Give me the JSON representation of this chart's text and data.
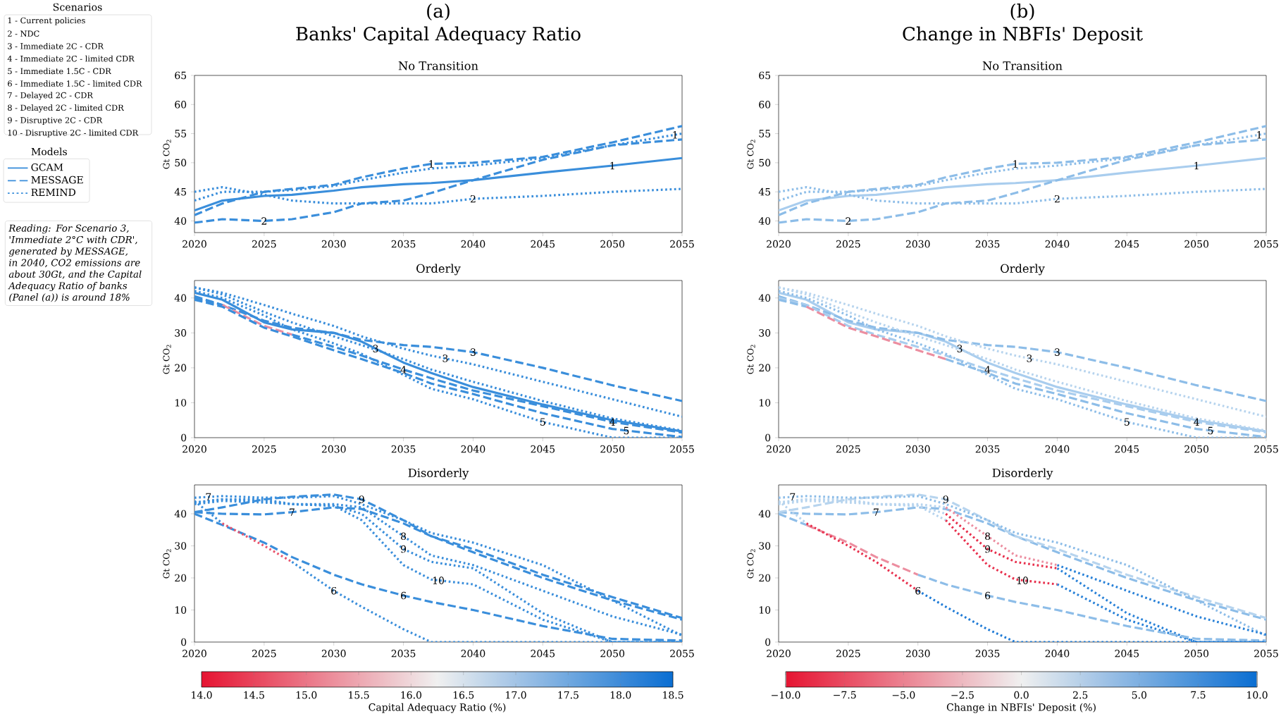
{
  "chart_data": [
    {
      "type": "other",
      "title": "Scenarios",
      "annotations": [
        "1 - Current policies",
        "2 - NDC",
        "3 - Immediate 2C - CDR",
        "4 - Immediate 2C - limited CDR",
        "5 - Immediate 1.5C - CDR",
        "6 - Immediate 1.5C - limited CDR",
        "7 - Delayed 2C - CDR",
        "8 - Delayed 2C - limited CDR",
        "9 - Disruptive 2C - CDR",
        "10 - Disruptive 2C - limited CDR",
        "*Reading: For Scenario 3, 'Immediate 2°C with CDR', generated by MESSAGE, in 2040, CO2 emissions are about 30Gt, and the Capital Adequacy Ratio of banks (Panel (a)) is around 18%*"
      ]
    },
    {
      "type": "line",
      "title": "Banks' Capital Adequacy Ratio",
      "subtitle": "No Transition",
      "ylabel": "Gt CO$_{2}$",
      "legend": "left",
      "legend_title": "Models",
      "x": [
        2020,
        2022,
        2025,
        2027,
        2030,
        2032,
        2035,
        2037,
        2040,
        2045,
        2050,
        2055
      ],
      "xlim": [
        2020,
        2055
      ],
      "xticks": [
        2020,
        2025,
        2030,
        2035,
        2040,
        2045,
        2050,
        2055
      ],
      "ylim": [
        38,
        65
      ],
      "yticks": [
        40,
        45,
        50,
        55,
        60,
        65
      ],
      "annotations": [
        "(a)",
        {
          "text": "1",
          "x": 2037,
          "y": 49.8
        },
        {
          "text": "1",
          "x": 2050,
          "y": 49.5
        },
        {
          "text": "1",
          "x": 2054.5,
          "y": 54.8
        },
        {
          "text": "2",
          "x": 2025,
          "y": 40
        },
        {
          "text": "2",
          "x": 2040,
          "y": 43.8
        }
      ],
      "series": [
        {
          "name": "GCAM",
          "line_style": "solid",
          "color": "#3a8edb",
          "values": [
            41.8,
            43.5,
            44.3,
            44.5,
            45.2,
            45.8,
            46.3,
            46.5,
            47,
            48.3,
            49.5,
            50.8
          ]
        },
        {
          "name": "MESSAGE",
          "line_style": "dashed",
          "color": "#3a8edb",
          "values": [
            41,
            43,
            45,
            45.5,
            46.2,
            47.5,
            49,
            49.8,
            50,
            51,
            53.5,
            56.3
          ]
        },
        {
          "name": "REMIND",
          "line_style": "dotted",
          "color": "#3a8edb",
          "values": [
            43.5,
            45,
            45,
            45.3,
            46,
            47,
            48.3,
            49,
            49.5,
            50.8,
            53,
            55
          ]
        },
        {
          "line_style": "dashed",
          "color": "#3a8edb",
          "values": [
            39.7,
            40.3,
            40,
            40.3,
            41.5,
            43,
            43.5,
            44.8,
            47,
            50.5,
            53,
            54
          ]
        },
        {
          "line_style": "dotted",
          "color": "#3a8edb",
          "values": [
            45,
            45.8,
            44.5,
            43.5,
            43,
            43,
            43,
            43,
            43.8,
            44.3,
            45,
            45.5
          ]
        }
      ]
    },
    {
      "type": "line",
      "title": "Change in NBFIs' Deposit",
      "subtitle": "No Transition",
      "ylabel": "Gt CO$_{2}$",
      "x": [
        2020,
        2022,
        2025,
        2027,
        2030,
        2032,
        2035,
        2037,
        2040,
        2045,
        2050,
        2055
      ],
      "xlim": [
        2020,
        2055
      ],
      "xticks": [
        2020,
        2025,
        2030,
        2035,
        2040,
        2045,
        2050,
        2055
      ],
      "ylim": [
        38,
        65
      ],
      "yticks": [
        40,
        45,
        50,
        55,
        60,
        65
      ],
      "annotations": [
        "(b)",
        {
          "text": "1",
          "x": 2037,
          "y": 49.8
        },
        {
          "text": "1",
          "x": 2050,
          "y": 49.5
        },
        {
          "text": "1",
          "x": 2054.5,
          "y": 54.8
        },
        {
          "text": "2",
          "x": 2025,
          "y": 40
        },
        {
          "text": "2",
          "x": 2040,
          "y": 43.8
        }
      ],
      "series": [
        {
          "line_style": "solid",
          "color": "#a9cdee",
          "values": [
            41.8,
            43.5,
            44.3,
            44.5,
            45.2,
            45.8,
            46.3,
            46.5,
            47,
            48.3,
            49.5,
            50.8
          ]
        },
        {
          "line_style": "dashed",
          "color": "#8dbde8",
          "values": [
            41,
            43,
            45,
            45.5,
            46.2,
            47.5,
            49,
            49.8,
            50,
            51,
            53.5,
            56.3
          ]
        },
        {
          "line_style": "dotted",
          "color": "#8dbde8",
          "values": [
            43.5,
            45,
            45,
            45.3,
            46,
            47,
            48.3,
            49,
            49.5,
            50.8,
            53,
            55
          ]
        },
        {
          "line_style": "dashed",
          "color": "#8dbde8",
          "values": [
            39.7,
            40.3,
            40,
            40.3,
            41.5,
            43,
            43.5,
            44.8,
            47,
            50.5,
            53,
            54
          ]
        },
        {
          "line_style": "dotted",
          "color": "#8dbde8",
          "values": [
            45,
            45.8,
            44.5,
            43.5,
            43,
            43,
            43,
            43,
            43.8,
            44.3,
            45,
            45.5
          ]
        }
      ]
    },
    {
      "type": "line",
      "title": "Orderly",
      "ylabel": "Gt CO$_{2}$",
      "x": [
        2020,
        2022,
        2025,
        2027,
        2030,
        2032,
        2035,
        2037,
        2040,
        2045,
        2050,
        2055
      ],
      "xlim": [
        2020,
        2055
      ],
      "xticks": [
        2020,
        2025,
        2030,
        2035,
        2040,
        2045,
        2050,
        2055
      ],
      "ylim": [
        0,
        45
      ],
      "yticks": [
        0,
        10,
        20,
        30,
        40
      ],
      "annotations": [
        {
          "text": "3",
          "x": 2033,
          "y": 25.5
        },
        {
          "text": "3",
          "x": 2038,
          "y": 22.7
        },
        {
          "text": "3",
          "x": 2040,
          "y": 24.5
        },
        {
          "text": "4",
          "x": 2035,
          "y": 19.5
        },
        {
          "text": "4",
          "x": 2050,
          "y": 4.5
        },
        {
          "text": "5",
          "x": 2045,
          "y": 4.5
        },
        {
          "text": "5",
          "x": 2051,
          "y": 2
        }
      ],
      "series": [
        {
          "line_style": "solid",
          "color": "#3a8edb",
          "values": [
            41.5,
            39.5,
            33,
            31,
            30,
            27.5,
            21.5,
            18.5,
            14.5,
            9.5,
            5,
            1.8
          ]
        },
        {
          "line_style": "dashed",
          "color": "#3a8edb",
          "values": [
            40.5,
            38,
            33.5,
            31.5,
            30,
            28,
            26.5,
            26,
            24.5,
            20,
            15,
            10.5
          ]
        },
        {
          "line_style": "dotted",
          "color": "#3a8edb",
          "values": [
            43,
            41.5,
            38,
            35.5,
            32,
            29,
            25.5,
            23.5,
            21,
            16,
            11,
            6
          ]
        },
        {
          "line_style": "dotted",
          "color": "#3a8edb",
          "values": [
            43,
            41,
            36,
            33,
            29,
            26.5,
            22.5,
            19.5,
            16,
            10.5,
            5.5,
            2
          ]
        },
        {
          "line_style": "dashed",
          "color": "#3a8edb",
          "values": [
            40,
            38,
            null,
            null,
            null,
            null,
            null,
            null,
            null,
            null,
            null,
            null
          ]
        },
        {
          "line_style": "dashed",
          "color": "#ec8ea0",
          "values": [
            null,
            38,
            32,
            29.5,
            null,
            null,
            null,
            null,
            null,
            null,
            null,
            null
          ]
        },
        {
          "line_style": "dashed",
          "color": "#3a8edb",
          "values": [
            null,
            null,
            null,
            29.5,
            26,
            23.5,
            19.5,
            17,
            13.5,
            9,
            4.5,
            1.5
          ]
        },
        {
          "line_style": "dashed",
          "color": "#3a8edb",
          "values": [
            39.5,
            37.5,
            31.5,
            29,
            25,
            22.5,
            18.5,
            15.5,
            12.5,
            7,
            2.5,
            0.2
          ]
        },
        {
          "line_style": "dotted",
          "color": "#3a8edb",
          "values": [
            42,
            40,
            35,
            31,
            27,
            24,
            18,
            14,
            11,
            4.5,
            0,
            0
          ]
        }
      ]
    },
    {
      "type": "line",
      "title": "Orderly",
      "ylabel": "Gt CO$_{2}$",
      "x": [
        2020,
        2022,
        2025,
        2027,
        2030,
        2032,
        2035,
        2037,
        2040,
        2045,
        2050,
        2055
      ],
      "xlim": [
        2020,
        2055
      ],
      "xticks": [
        2020,
        2025,
        2030,
        2035,
        2040,
        2045,
        2050,
        2055
      ],
      "ylim": [
        0,
        45
      ],
      "yticks": [
        0,
        10,
        20,
        30,
        40
      ],
      "annotations": [
        {
          "text": "3",
          "x": 2033,
          "y": 25.5
        },
        {
          "text": "3",
          "x": 2038,
          "y": 22.7
        },
        {
          "text": "3",
          "x": 2040,
          "y": 24.5
        },
        {
          "text": "4",
          "x": 2035,
          "y": 19.5
        },
        {
          "text": "4",
          "x": 2050,
          "y": 4.5
        },
        {
          "text": "5",
          "x": 2045,
          "y": 4.5
        },
        {
          "text": "5",
          "x": 2051,
          "y": 2
        }
      ],
      "series": [
        {
          "line_style": "solid",
          "color": "#a9cdee",
          "values": [
            41.5,
            39.5,
            33,
            31,
            30,
            27.5,
            21.5,
            18.5,
            14.5,
            9.5,
            5,
            1.8
          ]
        },
        {
          "line_style": "dashed",
          "color": "#8dbde8",
          "values": [
            40.5,
            38,
            33.5,
            31.5,
            30,
            28,
            26.5,
            26,
            24.5,
            20,
            15,
            10.5
          ]
        },
        {
          "line_style": "dotted",
          "color": "#b7d4ee",
          "values": [
            43,
            41.5,
            38,
            35.5,
            32,
            29,
            25.5,
            23.5,
            21,
            16,
            11,
            6
          ]
        },
        {
          "line_style": "dotted",
          "color": "#b7d4ee",
          "values": [
            43,
            41,
            36,
            33,
            29,
            26.5,
            22.5,
            19.5,
            16,
            10.5,
            5.5,
            2
          ]
        },
        {
          "line_style": "dashed",
          "color": "#a9cdee",
          "values": [
            40,
            38,
            32,
            29.5,
            26,
            23.5,
            19.5,
            17,
            13.5,
            9,
            4.5,
            1.5
          ]
        },
        {
          "line_style": "dashed",
          "color": "#8dbde8",
          "values": [
            39.5,
            37.5,
            null,
            null,
            null,
            null,
            null,
            null,
            null,
            null,
            null,
            null
          ]
        },
        {
          "line_style": "dashed",
          "color": "#ec8ea0",
          "values": [
            null,
            37.5,
            31.5,
            29,
            25,
            22.5,
            null,
            null,
            null,
            null,
            null,
            null
          ]
        },
        {
          "line_style": "dashed",
          "color": "#8dbde8",
          "values": [
            null,
            null,
            null,
            null,
            null,
            22.5,
            18.5,
            15.5,
            12.5,
            7,
            2.5,
            0.2
          ]
        },
        {
          "line_style": "dotted",
          "color": "#8dbde8",
          "values": [
            42,
            40,
            35,
            31,
            27,
            24,
            18,
            14,
            11,
            4.5,
            0,
            0
          ]
        }
      ]
    },
    {
      "type": "line",
      "title": "Disorderly",
      "ylabel": "Gt CO$_{2}$",
      "clabel": "Capital Adequacy Ratio (%)",
      "x": [
        2020,
        2022,
        2025,
        2027,
        2030,
        2032,
        2035,
        2037,
        2040,
        2045,
        2050,
        2055
      ],
      "xlim": [
        2020,
        2055
      ],
      "xticks": [
        2020,
        2025,
        2030,
        2035,
        2040,
        2045,
        2050,
        2055
      ],
      "ylim": [
        0,
        49
      ],
      "yticks": [
        0,
        10,
        20,
        30,
        40
      ],
      "clim": [
        14,
        18.5
      ],
      "cticks": [
        {
          "value": 14,
          "label": "14.0"
        },
        14.5,
        {
          "value": 15,
          "label": "15.0"
        },
        15.5,
        {
          "value": 16,
          "label": "16.0"
        },
        16.5,
        {
          "value": 17,
          "label": "17.0"
        },
        17.5,
        {
          "value": 18,
          "label": "18.0"
        },
        18.5
      ],
      "annotations": [
        {
          "text": "7",
          "x": 2021,
          "y": 45.3
        },
        {
          "text": "7",
          "x": 2027,
          "y": 40.5
        },
        {
          "text": "9",
          "x": 2032,
          "y": 44.5
        },
        {
          "text": "8",
          "x": 2035,
          "y": 33
        },
        {
          "text": "9",
          "x": 2035,
          "y": 29
        },
        {
          "text": "10",
          "x": 2037.5,
          "y": 19.2
        },
        {
          "text": "6",
          "x": 2030,
          "y": 16
        },
        {
          "text": "6",
          "x": 2035,
          "y": 14.5
        }
      ],
      "series": [
        {
          "line_style": "dashed",
          "color": "#3a8edb",
          "values": [
            40.5,
            40,
            39.8,
            40.5,
            42,
            41.5,
            37,
            33,
            28,
            20,
            13,
            7
          ]
        },
        {
          "line_style": "dashed",
          "color": "#3a8edb",
          "values": [
            40.5,
            42,
            44.5,
            45.3,
            46,
            44.5,
            38,
            33,
            29,
            21,
            14,
            7.5
          ]
        },
        {
          "line_style": "dotted",
          "color": "#3a8edb",
          "values": [
            45,
            45.5,
            45,
            45,
            45.5,
            43,
            38,
            34,
            31,
            24,
            13,
            2
          ]
        },
        {
          "line_style": "dotted",
          "color": "#3a8edb",
          "values": [
            43.5,
            44.5,
            44.5,
            43,
            43,
            42,
            33,
            27,
            24,
            16,
            8,
            2.3
          ]
        },
        {
          "line_style": "dotted",
          "color": "#3a8edb",
          "values": [
            43.5,
            44.5,
            44,
            43,
            42.5,
            40,
            29,
            25,
            23,
            9,
            0,
            0
          ]
        },
        {
          "line_style": "dotted",
          "color": "#3a8edb",
          "values": [
            43,
            44,
            43.5,
            43,
            42.5,
            38,
            24,
            19.5,
            18,
            7,
            0,
            0
          ]
        },
        {
          "line_style": "dashed",
          "color": "#3a8edb",
          "values": [
            40,
            36.5,
            31,
            26.5,
            21,
            18,
            14.5,
            12.5,
            10,
            5,
            1,
            0.5
          ]
        },
        {
          "line_style": "dotted",
          "color": "#3a8edb",
          "values": [
            44,
            37,
            null,
            null,
            null,
            null,
            null,
            null,
            null,
            null,
            null,
            null
          ]
        },
        {
          "line_style": "dotted",
          "color": "#e9566e",
          "values": [
            null,
            37,
            30,
            25,
            null,
            null,
            null,
            null,
            null,
            null,
            null,
            null
          ]
        },
        {
          "line_style": "dotted",
          "color": "#3a8edb",
          "values": [
            null,
            null,
            null,
            25,
            16,
            11,
            4,
            0,
            0,
            0,
            0,
            0
          ]
        }
      ]
    },
    {
      "type": "line",
      "title": "Disorderly",
      "ylabel": "Gt CO$_{2}$",
      "clabel": "Change in NBFIs' Deposit (%)",
      "x": [
        2020,
        2022,
        2025,
        2027,
        2030,
        2032,
        2035,
        2037,
        2040,
        2045,
        2050,
        2055
      ],
      "xlim": [
        2020,
        2055
      ],
      "xticks": [
        2020,
        2025,
        2030,
        2035,
        2040,
        2045,
        2050,
        2055
      ],
      "ylim": [
        0,
        49
      ],
      "yticks": [
        0,
        10,
        20,
        30,
        40
      ],
      "clim": [
        -10,
        10
      ],
      "cticks": [
        {
          "value": -10,
          "label": "−10.0"
        },
        {
          "value": -7.5,
          "label": "−7.5"
        },
        {
          "value": -5,
          "label": "−5.0"
        },
        {
          "value": -2.5,
          "label": "−2.5"
        },
        {
          "value": 0,
          "label": "0.0"
        },
        2.5,
        {
          "value": 5,
          "label": "5.0"
        },
        7.5,
        {
          "value": 10,
          "label": "10.0"
        }
      ],
      "annotations": [
        {
          "text": "7",
          "x": 2021,
          "y": 45.3
        },
        {
          "text": "7",
          "x": 2027,
          "y": 40.5
        },
        {
          "text": "9",
          "x": 2032,
          "y": 44.5
        },
        {
          "text": "8",
          "x": 2035,
          "y": 33
        },
        {
          "text": "9",
          "x": 2035,
          "y": 29
        },
        {
          "text": "10",
          "x": 2037.5,
          "y": 19.2
        },
        {
          "text": "6",
          "x": 2030,
          "y": 16
        },
        {
          "text": "6",
          "x": 2035,
          "y": 14.5
        }
      ],
      "series": [
        {
          "line_style": "dashed",
          "color": "#8dbde8",
          "values": [
            40.5,
            40,
            39.8,
            40.5,
            42,
            41.5,
            37,
            33,
            28,
            20,
            13,
            7
          ]
        },
        {
          "line_style": "dashed",
          "color": "#b7d4ee",
          "values": [
            40.5,
            42,
            44.5,
            45.3,
            46,
            44.5,
            38,
            33,
            29,
            21,
            14,
            7.5
          ]
        },
        {
          "line_style": "dotted",
          "color": "#8dbde8",
          "values": [
            45,
            45.5,
            45,
            45,
            45.5,
            43,
            38,
            34,
            31,
            24,
            13,
            2
          ]
        },
        {
          "line_style": "dotted",
          "color": "#b7d4ee",
          "values": [
            43.5,
            44.5,
            44.5,
            43,
            43,
            42,
            null,
            null,
            null,
            null,
            null,
            null
          ]
        },
        {
          "line_style": "dotted",
          "color": "#ec8ea0",
          "values": [
            null,
            null,
            null,
            null,
            null,
            42,
            33,
            27,
            24,
            null,
            null,
            null
          ]
        },
        {
          "line_style": "dotted",
          "color": "#2a82d8",
          "values": [
            null,
            null,
            null,
            null,
            null,
            null,
            null,
            null,
            24,
            16,
            8,
            2.3
          ]
        },
        {
          "line_style": "dotted",
          "color": "#b7d4ee",
          "values": [
            43.5,
            44.5,
            44,
            43,
            42.5,
            40,
            null,
            null,
            null,
            null,
            null,
            null
          ]
        },
        {
          "line_style": "dotted",
          "color": "#e8304d",
          "values": [
            null,
            null,
            null,
            null,
            null,
            40,
            29,
            25,
            23,
            null,
            null,
            null
          ]
        },
        {
          "line_style": "dotted",
          "color": "#2a82d8",
          "values": [
            null,
            null,
            null,
            null,
            null,
            null,
            null,
            null,
            23,
            9,
            0,
            0
          ]
        },
        {
          "line_style": "dotted",
          "color": "#b7d4ee",
          "values": [
            43,
            44,
            43.5,
            43,
            42.5,
            38,
            null,
            null,
            null,
            null,
            null,
            null
          ]
        },
        {
          "line_style": "dotted",
          "color": "#e8304d",
          "values": [
            null,
            null,
            null,
            null,
            null,
            38,
            24,
            19.5,
            18,
            null,
            null,
            null
          ]
        },
        {
          "line_style": "dotted",
          "color": "#2a82d8",
          "values": [
            null,
            null,
            null,
            null,
            null,
            null,
            null,
            null,
            18,
            7,
            0,
            0
          ]
        },
        {
          "line_style": "dashed",
          "color": "#8dbde8",
          "values": [
            40,
            36.5,
            null,
            null,
            null,
            null,
            null,
            null,
            null,
            null,
            null,
            null
          ]
        },
        {
          "line_style": "dashed",
          "color": "#ec8ea0",
          "values": [
            null,
            36.5,
            31,
            26.5,
            21,
            null,
            null,
            null,
            null,
            null,
            null,
            null
          ]
        },
        {
          "line_style": "dashed",
          "color": "#8dbde8",
          "values": [
            null,
            null,
            null,
            null,
            21,
            18,
            14.5,
            12.5,
            10,
            5,
            1,
            0.5
          ]
        },
        {
          "line_style": "dotted",
          "color": "#b7d4ee",
          "values": [
            44,
            37,
            null,
            null,
            null,
            null,
            null,
            null,
            null,
            null,
            null,
            null
          ]
        },
        {
          "line_style": "dotted",
          "color": "#e8304d",
          "values": [
            null,
            37,
            30,
            25,
            16,
            null,
            null,
            null,
            null,
            null,
            null,
            null
          ]
        },
        {
          "line_style": "dotted",
          "color": "#1f7bd6",
          "values": [
            null,
            null,
            null,
            null,
            16,
            11,
            4,
            0,
            0,
            0,
            0,
            0
          ]
        }
      ]
    }
  ]
}
